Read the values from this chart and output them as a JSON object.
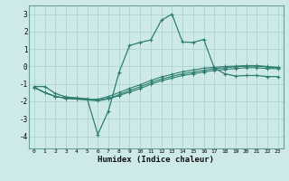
{
  "xlabel": "Humidex (Indice chaleur)",
  "background_color": "#ceeae8",
  "line_color": "#2e7d70",
  "grid_color": "#aed4d0",
  "xlim": [
    -0.5,
    23.5
  ],
  "ylim": [
    -4.7,
    3.5
  ],
  "xticks": [
    0,
    1,
    2,
    3,
    4,
    5,
    6,
    7,
    8,
    9,
    10,
    11,
    12,
    13,
    14,
    15,
    16,
    17,
    18,
    19,
    20,
    21,
    22,
    23
  ],
  "yticks": [
    -4,
    -3,
    -2,
    -1,
    0,
    1,
    2,
    3
  ],
  "x": [
    0,
    1,
    2,
    3,
    4,
    5,
    6,
    7,
    8,
    9,
    10,
    11,
    12,
    13,
    14,
    15,
    16,
    17,
    18,
    19,
    20,
    21,
    22,
    23
  ],
  "lines": [
    [
      -1.15,
      -1.15,
      -1.55,
      -1.75,
      -1.8,
      -1.85,
      -3.9,
      -2.55,
      -0.35,
      1.2,
      1.38,
      1.52,
      2.65,
      3.0,
      1.4,
      1.38,
      1.55,
      -0.1,
      -0.42,
      -0.55,
      -0.52,
      -0.52,
      -0.58,
      -0.58
    ],
    [
      -1.2,
      -1.5,
      -1.72,
      -1.82,
      -1.85,
      -1.88,
      -1.88,
      -1.72,
      -1.5,
      -1.25,
      -1.05,
      -0.8,
      -0.6,
      -0.45,
      -0.3,
      -0.2,
      -0.1,
      -0.05,
      0.0,
      0.02,
      0.05,
      0.05,
      0.0,
      -0.05
    ],
    [
      -1.2,
      -1.5,
      -1.72,
      -1.82,
      -1.87,
      -1.9,
      -1.92,
      -1.82,
      -1.62,
      -1.37,
      -1.17,
      -0.92,
      -0.72,
      -0.57,
      -0.42,
      -0.32,
      -0.22,
      -0.12,
      -0.07,
      -0.02,
      0.02,
      0.02,
      -0.03,
      -0.08
    ],
    [
      -1.2,
      -1.5,
      -1.72,
      -1.82,
      -1.87,
      -1.92,
      -1.97,
      -1.87,
      -1.67,
      -1.47,
      -1.27,
      -1.02,
      -0.82,
      -0.67,
      -0.52,
      -0.42,
      -0.32,
      -0.22,
      -0.17,
      -0.12,
      -0.07,
      -0.07,
      -0.12,
      -0.12
    ]
  ]
}
